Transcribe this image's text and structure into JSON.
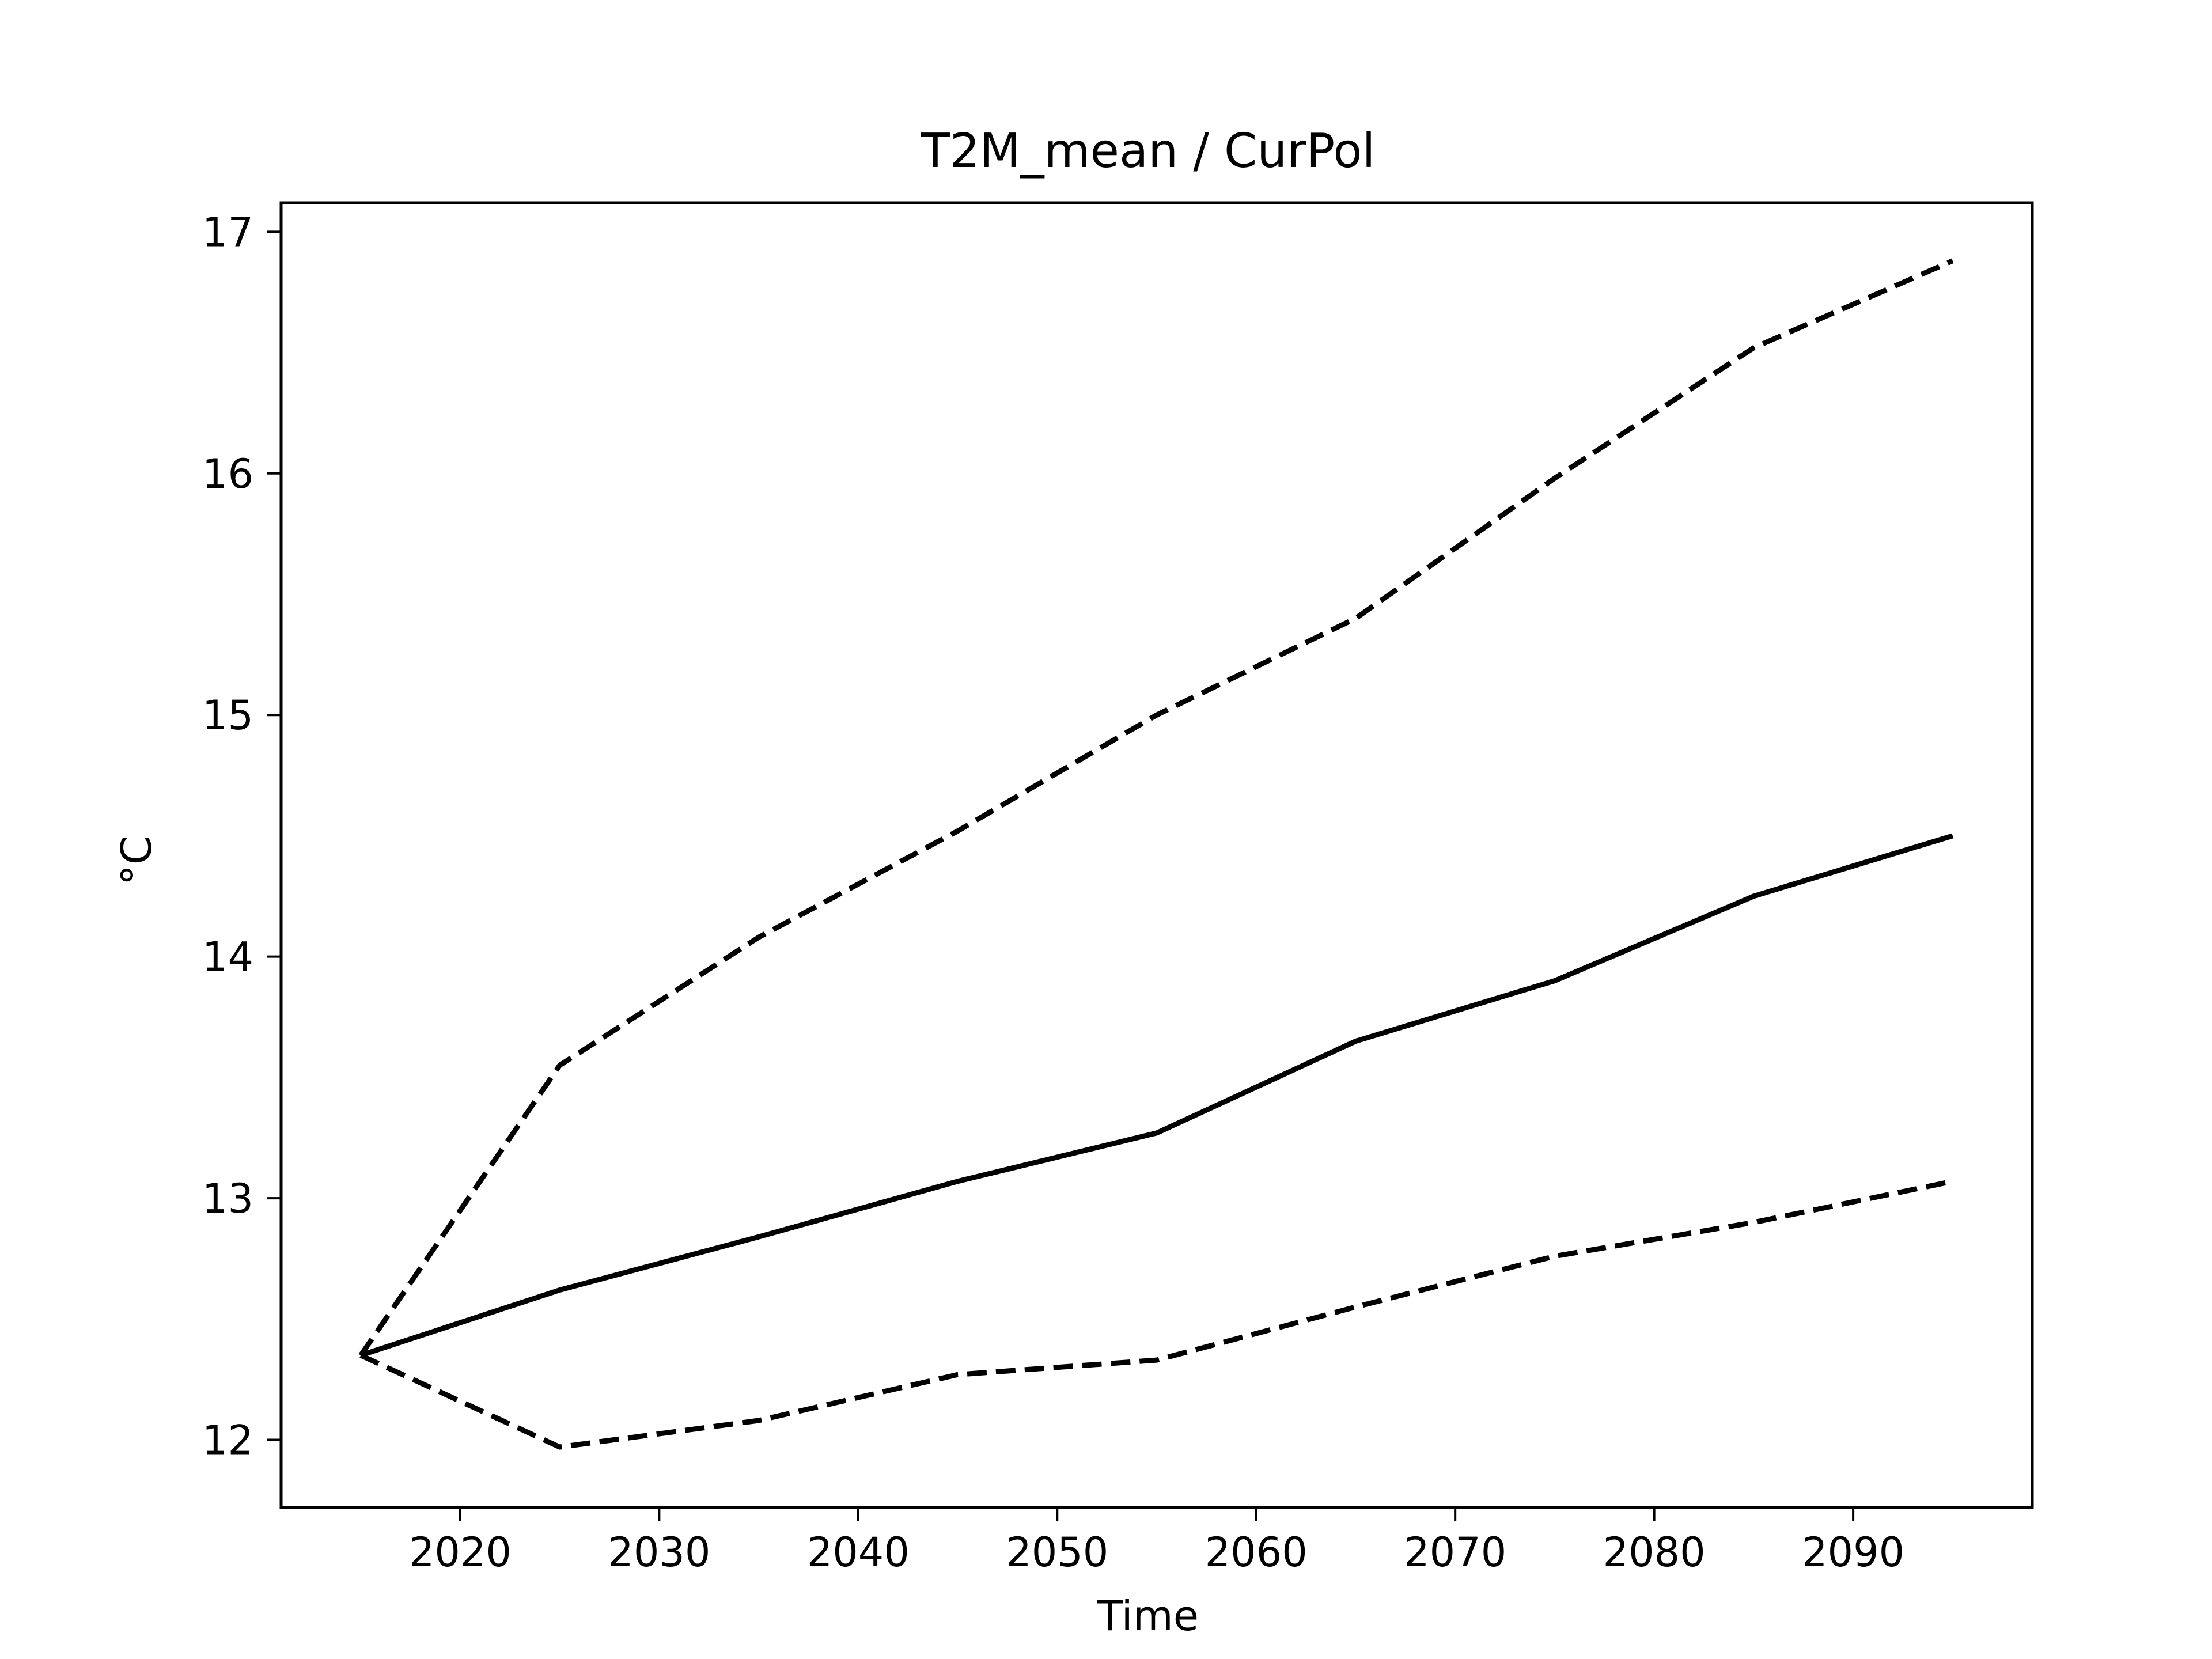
{
  "chart_data": {
    "type": "line",
    "title": "T2M_mean / CurPol",
    "xlabel": "Time",
    "ylabel": "°C",
    "xlim": [
      2011,
      2099
    ],
    "ylim": [
      11.72,
      17.12
    ],
    "xticks": [
      2020,
      2030,
      2040,
      2050,
      2060,
      2070,
      2080,
      2090
    ],
    "yticks": [
      12,
      13,
      14,
      15,
      16,
      17
    ],
    "grid": false,
    "x": [
      2015,
      2025,
      2035,
      2045,
      2055,
      2065,
      2075,
      2085,
      2095
    ],
    "series": [
      {
        "style": "solid",
        "color": "#000000",
        "values": [
          12.35,
          12.62,
          12.84,
          13.07,
          13.27,
          13.65,
          13.9,
          14.25,
          14.5
        ]
      },
      {
        "style": "dashed",
        "color": "#000000",
        "values": [
          12.35,
          13.55,
          14.08,
          14.52,
          15.0,
          15.4,
          15.98,
          16.52,
          16.88
        ]
      },
      {
        "style": "dashed",
        "color": "#000000",
        "values": [
          12.35,
          11.97,
          12.08,
          12.27,
          12.33,
          12.55,
          12.76,
          12.9,
          13.07
        ]
      }
    ]
  }
}
